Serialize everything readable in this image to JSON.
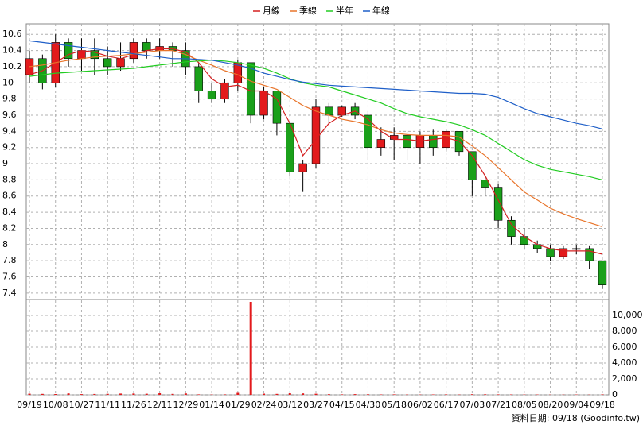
{
  "chart_data": {
    "type": "candlestick",
    "footer": "資料日期: 09/18 (Goodinfo.tw)",
    "categories": [
      "09/19",
      null,
      "10/08",
      null,
      "10/27",
      null,
      "11/11",
      null,
      "11/26",
      null,
      "12/11",
      null,
      "12/29",
      null,
      "01/14",
      null,
      "01/29",
      null,
      "02/24",
      null,
      "03/12",
      null,
      "03/27",
      null,
      "04/15",
      null,
      "04/30",
      null,
      "05/18",
      null,
      "06/02",
      null,
      "06/17",
      null,
      "07/03",
      null,
      "07/21",
      null,
      "08/05",
      null,
      "08/20",
      null,
      "09/04",
      null,
      "09/18"
    ],
    "ylim": [
      7.32,
      10.73
    ],
    "yticks": [
      7.4,
      7.6,
      7.8,
      8,
      8.2,
      8.4,
      8.6,
      8.8,
      9,
      9.2,
      9.4,
      9.6,
      9.8,
      10,
      10.2,
      10.4,
      10.6
    ],
    "grid": true,
    "up_color": "#e31a1c",
    "down_color": "#1aa01a",
    "ohlc": {
      "open": [
        10.1,
        10.3,
        10.0,
        10.5,
        10.3,
        10.4,
        10.3,
        10.2,
        10.3,
        10.5,
        10.4,
        10.45,
        10.4,
        10.2,
        9.9,
        9.8,
        10.0,
        10.25,
        9.6,
        9.9,
        9.5,
        8.9,
        9.0,
        9.7,
        9.6,
        9.7,
        9.6,
        9.2,
        9.3,
        9.35,
        9.2,
        9.35,
        9.2,
        9.4,
        9.15,
        8.8,
        8.7,
        8.3,
        8.1,
        8.0,
        7.95,
        7.85,
        7.95,
        7.95,
        7.8
      ],
      "high": [
        10.4,
        10.35,
        10.6,
        10.55,
        10.55,
        10.55,
        10.45,
        10.5,
        10.55,
        10.55,
        10.55,
        10.5,
        10.5,
        10.25,
        10.0,
        10.05,
        10.28,
        10.25,
        9.95,
        9.9,
        9.5,
        9.05,
        9.8,
        9.75,
        9.72,
        9.75,
        9.65,
        9.45,
        9.45,
        9.4,
        9.4,
        9.42,
        9.42,
        9.4,
        9.15,
        8.85,
        8.75,
        8.35,
        8.2,
        8.05,
        8.0,
        7.98,
        8.0,
        7.98,
        7.8
      ],
      "low": [
        10.0,
        9.92,
        9.95,
        10.2,
        10.15,
        10.1,
        10.1,
        10.15,
        10.25,
        10.3,
        10.3,
        10.2,
        10.1,
        9.75,
        9.75,
        9.75,
        9.9,
        9.5,
        9.55,
        9.35,
        8.85,
        8.65,
        8.95,
        9.5,
        9.58,
        9.55,
        9.05,
        9.1,
        9.05,
        9.05,
        9.0,
        9.1,
        9.15,
        9.1,
        8.6,
        8.6,
        8.2,
        8.0,
        7.95,
        7.9,
        7.8,
        7.82,
        7.88,
        7.7,
        7.45
      ],
      "close": [
        10.3,
        10.0,
        10.5,
        10.3,
        10.4,
        10.3,
        10.2,
        10.3,
        10.5,
        10.4,
        10.45,
        10.4,
        10.2,
        9.9,
        9.8,
        10.0,
        10.25,
        9.6,
        9.9,
        9.5,
        8.9,
        9.0,
        9.7,
        9.6,
        9.7,
        9.6,
        9.2,
        9.3,
        9.35,
        9.2,
        9.35,
        9.2,
        9.4,
        9.15,
        8.8,
        8.7,
        8.3,
        8.1,
        8.0,
        7.95,
        7.85,
        7.95,
        7.95,
        7.8,
        7.5
      ]
    },
    "series": [
      {
        "name": "月線",
        "color": "#d42020",
        "values": [
          10.1,
          10.15,
          10.25,
          10.35,
          10.4,
          10.38,
          10.33,
          10.3,
          10.35,
          10.4,
          10.42,
          10.42,
          10.38,
          10.25,
          10.05,
          9.95,
          9.97,
          9.9,
          9.9,
          9.8,
          9.5,
          9.1,
          9.3,
          9.5,
          9.6,
          9.65,
          9.55,
          9.4,
          9.3,
          9.3,
          9.28,
          9.3,
          9.32,
          9.28,
          9.1,
          8.85,
          8.55,
          8.25,
          8.1,
          8.0,
          7.95,
          7.92,
          7.92,
          7.92,
          7.88
        ]
      },
      {
        "name": "季線",
        "color": "#e8742a",
        "values": [
          10.2,
          10.22,
          10.25,
          10.28,
          10.3,
          10.32,
          10.33,
          10.34,
          10.36,
          10.38,
          10.4,
          10.4,
          10.35,
          10.28,
          10.22,
          10.15,
          10.1,
          10.02,
          9.97,
          9.92,
          9.82,
          9.72,
          9.65,
          9.6,
          9.55,
          9.52,
          9.48,
          9.42,
          9.38,
          9.36,
          9.35,
          9.35,
          9.35,
          9.33,
          9.22,
          9.1,
          8.95,
          8.8,
          8.65,
          8.55,
          8.45,
          8.38,
          8.32,
          8.27,
          8.22
        ]
      },
      {
        "name": "半年",
        "color": "#22cc22",
        "values": [
          10.08,
          10.1,
          10.12,
          10.13,
          10.14,
          10.15,
          10.16,
          10.17,
          10.18,
          10.2,
          10.22,
          10.24,
          10.26,
          10.27,
          10.28,
          10.27,
          10.25,
          10.22,
          10.18,
          10.12,
          10.05,
          10.0,
          9.97,
          9.95,
          9.9,
          9.85,
          9.8,
          9.75,
          9.68,
          9.62,
          9.58,
          9.55,
          9.52,
          9.48,
          9.42,
          9.35,
          9.25,
          9.15,
          9.05,
          8.98,
          8.93,
          8.9,
          8.87,
          8.84,
          8.8
        ]
      },
      {
        "name": "年線",
        "color": "#1f5fc8",
        "values": [
          10.52,
          10.5,
          10.48,
          10.46,
          10.44,
          10.42,
          10.4,
          10.38,
          10.36,
          10.34,
          10.32,
          10.3,
          10.3,
          10.29,
          10.28,
          10.25,
          10.22,
          10.18,
          10.12,
          10.08,
          10.04,
          10.01,
          9.99,
          9.97,
          9.96,
          9.95,
          9.94,
          9.93,
          9.92,
          9.91,
          9.9,
          9.89,
          9.88,
          9.87,
          9.87,
          9.86,
          9.82,
          9.75,
          9.68,
          9.62,
          9.58,
          9.54,
          9.5,
          9.47,
          9.43
        ]
      }
    ],
    "volume": {
      "color": "#e31a1c",
      "ylim": [
        0,
        12000
      ],
      "yticks": [
        0,
        {
          "value": 2000,
          "label": "2,000"
        },
        {
          "value": 4000,
          "label": "4,000"
        },
        {
          "value": 6000,
          "label": "6,000"
        },
        {
          "value": 8000,
          "label": "8,000"
        },
        {
          "value": 10000,
          "label": "10,000"
        }
      ],
      "values": [
        150,
        120,
        100,
        180,
        90,
        110,
        130,
        160,
        170,
        140,
        200,
        120,
        180,
        60,
        40,
        60,
        250,
        11700,
        150,
        120,
        200,
        180,
        140,
        80,
        60,
        90,
        70,
        50,
        60,
        40,
        40,
        50,
        60,
        40,
        80,
        70,
        60,
        50,
        40,
        40,
        30,
        30,
        40,
        30,
        60
      ]
    }
  }
}
